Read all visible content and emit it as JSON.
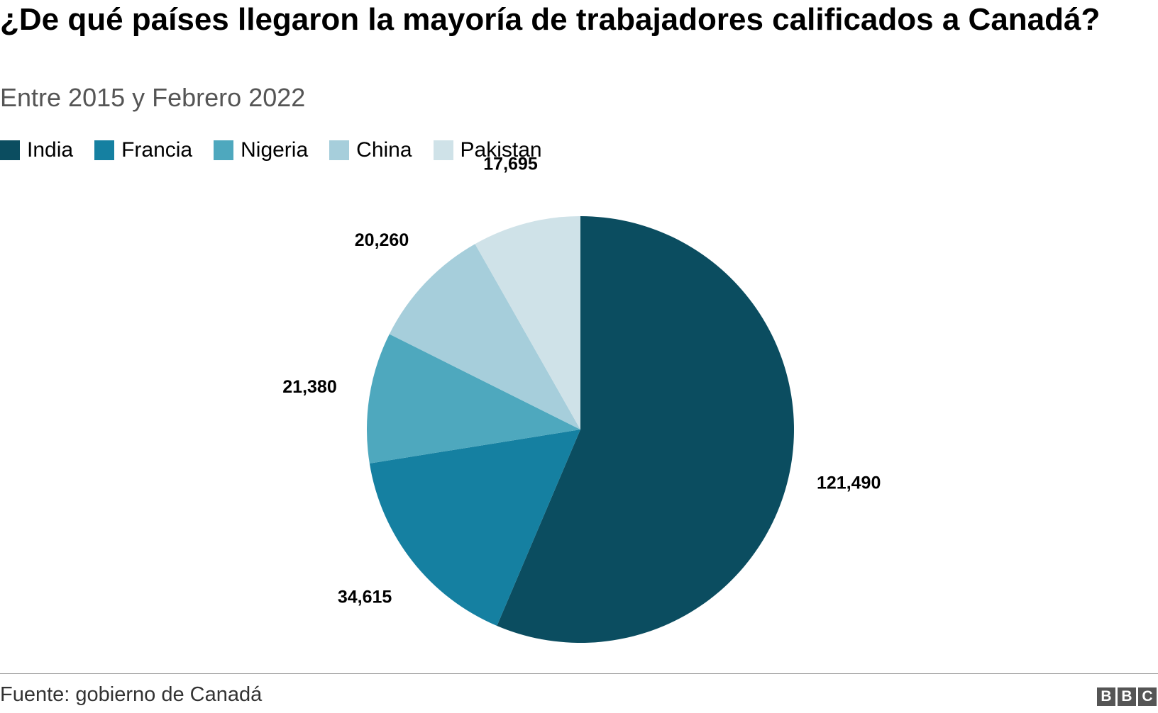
{
  "title": "¿De qué países llegaron la mayoría de trabajadores calificados a Canadá?",
  "subtitle": "Entre 2015 y Febrero 2022",
  "source": "Fuente: gobierno de Canadá",
  "logo": [
    "B",
    "B",
    "C"
  ],
  "chart_data": {
    "type": "pie",
    "categories": [
      "India",
      "Francia",
      "Nigeria",
      "China",
      "Pakistan"
    ],
    "values": [
      121490,
      34615,
      21380,
      20260,
      17695
    ],
    "value_labels": [
      "121,490",
      "34,615",
      "21,380",
      "20,260",
      "17,695"
    ],
    "colors": [
      "#0b4d60",
      "#1580a1",
      "#4ea8be",
      "#a6cedb",
      "#cfe2e8"
    ],
    "start_angle": "12 o'clock",
    "direction": "clockwise",
    "legend": "top-left"
  }
}
